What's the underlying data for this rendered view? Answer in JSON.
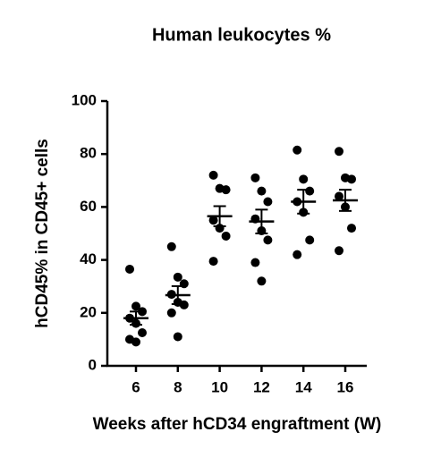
{
  "chart_data": {
    "type": "strip",
    "title": "Human leukocytes %",
    "x_label": "Weeks after hCD34 engraftment (W)",
    "y_label": "hCD45% in CD45+ cells",
    "categories": [
      "6",
      "8",
      "10",
      "12",
      "14",
      "16"
    ],
    "values": [
      [
        36.5,
        22.5,
        20.5,
        18,
        16,
        12.5,
        10,
        9
      ],
      [
        45,
        33.5,
        31,
        27,
        24,
        23,
        20,
        11
      ],
      [
        72,
        67,
        66.5,
        55,
        52,
        49,
        39.5
      ],
      [
        71,
        66,
        62,
        55.5,
        51,
        47.5,
        39,
        32
      ],
      [
        81.5,
        70.5,
        66,
        62,
        58,
        47.5,
        42
      ],
      [
        81,
        71,
        70.5,
        64,
        60,
        52,
        43.5
      ]
    ],
    "means": [
      18,
      26.7,
      56.5,
      54.5,
      62,
      62.5
    ],
    "sems": [
      2.5,
      3.4,
      3.8,
      4.5,
      4.5,
      4
    ],
    "color": "#000000",
    "ylim": [
      0,
      100
    ],
    "yticks": [
      0,
      20,
      40,
      60,
      80,
      100
    ]
  }
}
